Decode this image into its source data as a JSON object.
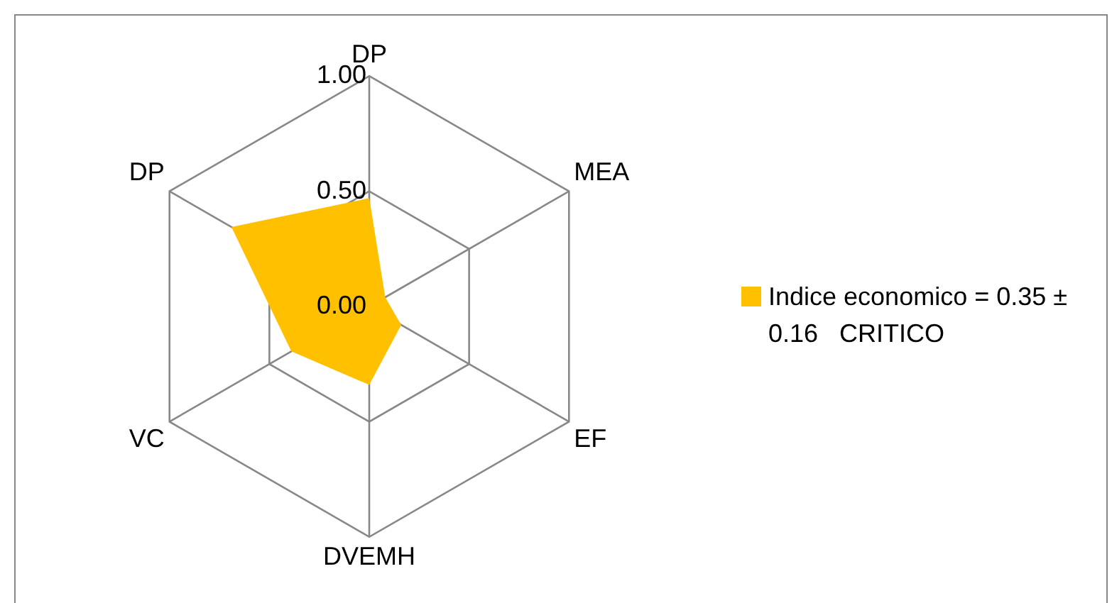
{
  "chart_data": {
    "type": "radar",
    "categories": [
      "DP",
      "MEA",
      "EF",
      "DVEMH",
      "VC",
      "DP"
    ],
    "series": [
      {
        "name": "Indice economico = 0.35 ± 0.16   CRITICO",
        "color": "#ffc000",
        "values": [
          0.47,
          0.08,
          0.16,
          0.34,
          0.39,
          0.69
        ]
      }
    ],
    "ylim": [
      0,
      1
    ],
    "yticks": [
      {
        "value": 0,
        "label": "0.00"
      },
      {
        "value": 0.5,
        "label": "0.50"
      },
      {
        "value": 1,
        "label": "1.00"
      }
    ],
    "grid": true,
    "legend": "right",
    "marker": "none"
  }
}
